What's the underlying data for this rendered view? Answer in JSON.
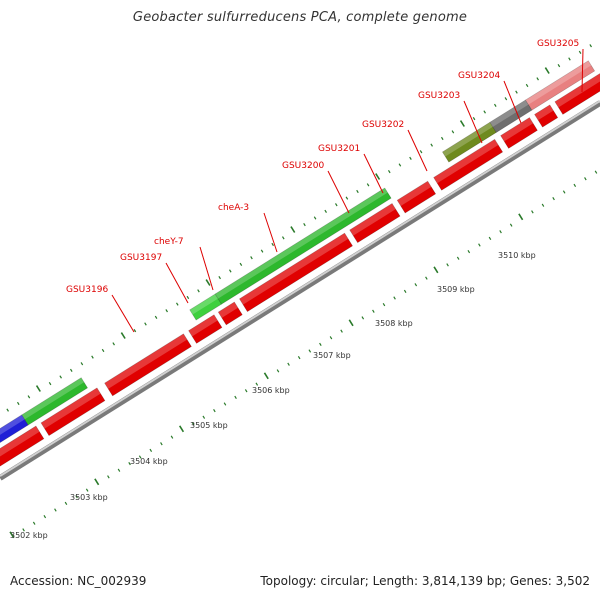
{
  "title": "Geobacter sulfurreducens PCA, complete genome",
  "footer": {
    "accession": "Accession: NC_002939",
    "summary": "Topology: circular; Length: 3,814,139 bp; Genes: 3,502"
  },
  "colors": {
    "forward_red": "#e00000",
    "green": "#2db82d",
    "blue": "#1f1fd6",
    "olive": "#6e8a1e",
    "gray": "#6e6e6e",
    "pink": "#e88080",
    "tick": "#2a7a2a",
    "backbone": "#999999",
    "label": "#dd0000"
  },
  "gene_labels": [
    "GSU3196",
    "GSU3197",
    "cheY-7",
    "cheA-3",
    "GSU3200",
    "GSU3201",
    "GSU3202",
    "GSU3203",
    "GSU3204",
    "GSU3205"
  ],
  "kbp_labels": [
    "3502 kbp",
    "3503 kbp",
    "3504 kbp",
    "3505 kbp",
    "3506 kbp",
    "3507 kbp",
    "3508 kbp",
    "3509 kbp",
    "3510 kbp"
  ]
}
